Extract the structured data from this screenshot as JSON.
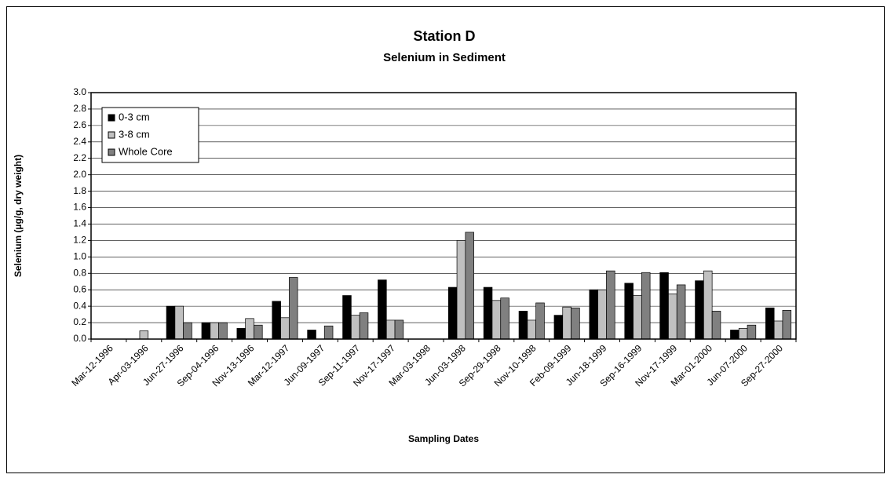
{
  "chart_data": {
    "type": "bar",
    "title": "Station D",
    "subtitle": "Selenium in Sediment",
    "x_label": "Sampling Dates",
    "y_label": "Selenium  (µg/g, dry weight)",
    "categories": [
      "Mar-12-1996",
      "Apr-03-1996",
      "Jun-27-1996",
      "Sep-04-1996",
      "Nov-13-1996",
      "Mar-12-1997",
      "Jun-09-1997",
      "Sep-11-1997",
      "Nov-17-1997",
      "Mar-03-1998",
      "Jun-03-1998",
      "Sep-29-1998",
      "Nov-10-1998",
      "Feb-09-1999",
      "Jun-18-1999",
      "Sep-16-1999",
      "Nov-17-1999",
      "Mar-01-2000",
      "Jun-07-2000",
      "Sep-27-2000"
    ],
    "series": [
      {
        "name": "0-3 cm",
        "color": "#000000",
        "values": [
          0,
          0,
          0.4,
          0.2,
          0.13,
          0.46,
          0.11,
          0.53,
          0.72,
          0,
          0.63,
          0.63,
          0.34,
          0.29,
          0.6,
          0.68,
          0.81,
          0.71,
          0.11,
          0.38
        ]
      },
      {
        "name": "3-8 cm",
        "color": "#c0c0c0",
        "values": [
          0,
          0.1,
          0.4,
          0.2,
          0.25,
          0.26,
          0,
          0.29,
          0.23,
          0,
          1.2,
          0.47,
          0.23,
          0.39,
          0.6,
          0.53,
          0.55,
          0.83,
          0.13,
          0.22
        ]
      },
      {
        "name": "Whole Core",
        "color": "#808080",
        "values": [
          0,
          0,
          0.2,
          0.2,
          0.17,
          0.75,
          0.16,
          0.32,
          0.23,
          0,
          1.3,
          0.5,
          0.44,
          0.38,
          0.83,
          0.81,
          0.66,
          0.34,
          0.17,
          0.35
        ]
      }
    ],
    "ylim": [
      0,
      3
    ],
    "yticks": [
      {
        "value": 0,
        "label": "0.0"
      },
      {
        "value": 0.2,
        "label": "0.2"
      },
      {
        "value": 0.4,
        "label": "0.4"
      },
      {
        "value": 0.6,
        "label": "0.6"
      },
      {
        "value": 0.8,
        "label": "0.8"
      },
      {
        "value": 1,
        "label": "1.0"
      },
      {
        "value": 1.2,
        "label": "1.2"
      },
      {
        "value": 1.4,
        "label": "1.4"
      },
      {
        "value": 1.6,
        "label": "1.6"
      },
      {
        "value": 1.8,
        "label": "1.8"
      },
      {
        "value": 2,
        "label": "2.0"
      },
      {
        "value": 2.2,
        "label": "2.2"
      },
      {
        "value": 2.4,
        "label": "2.4"
      },
      {
        "value": 2.6,
        "label": "2.6"
      },
      {
        "value": 2.8,
        "label": "2.8"
      },
      {
        "value": 3,
        "label": "3.0"
      }
    ],
    "grid": true,
    "legend": "upper-left"
  }
}
